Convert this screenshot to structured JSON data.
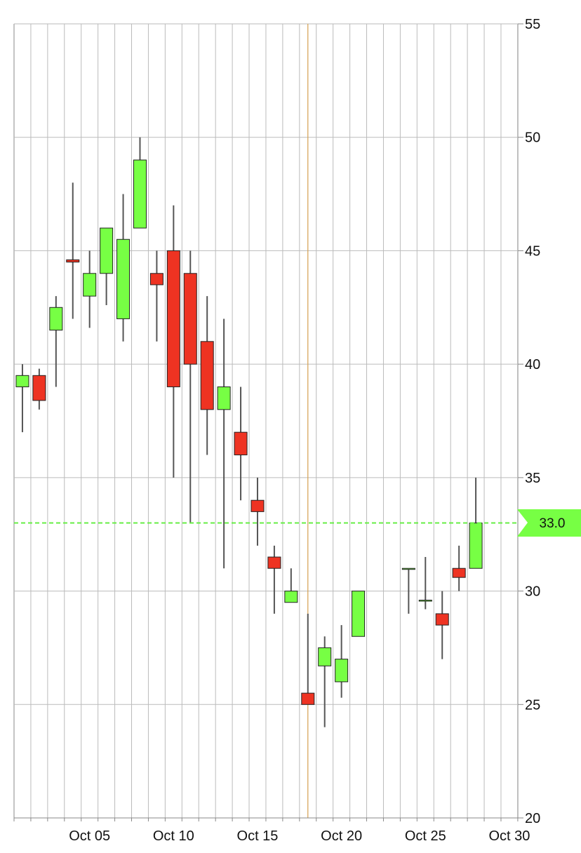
{
  "colors": {
    "up": "#77ff44",
    "down": "#ee3322",
    "grid": "#bbbbbb",
    "axis": "#888888",
    "crosshair": "#d4a050",
    "price_line": "#66ee44",
    "wick": "#555555"
  },
  "chart_data": {
    "type": "candlestick",
    "title": "",
    "xlabel": "",
    "ylabel": "",
    "ylim": [
      20,
      55
    ],
    "yticks": [
      20,
      25,
      30,
      35,
      40,
      45,
      50,
      55
    ],
    "grid": true,
    "y_axis_side": "right",
    "x_tick_labels": [
      {
        "day": 5,
        "label": "Oct 05"
      },
      {
        "day": 10,
        "label": "Oct 10"
      },
      {
        "day": 15,
        "label": "Oct 15"
      },
      {
        "day": 20,
        "label": "Oct 20"
      },
      {
        "day": 25,
        "label": "Oct 25"
      },
      {
        "day": 30,
        "label": "Oct 30"
      }
    ],
    "crosshair_day": 18,
    "current_price": 33.0,
    "current_price_label": "33.0",
    "candles": [
      {
        "day": 1,
        "open": 39.0,
        "high": 40.0,
        "low": 37.0,
        "close": 39.5
      },
      {
        "day": 2,
        "open": 39.5,
        "high": 39.8,
        "low": 38.0,
        "close": 38.4
      },
      {
        "day": 3,
        "open": 41.5,
        "high": 43.0,
        "low": 39.0,
        "close": 42.5
      },
      {
        "day": 4,
        "open": 44.6,
        "high": 48.0,
        "low": 42.0,
        "close": 44.5
      },
      {
        "day": 5,
        "open": 43.0,
        "high": 45.0,
        "low": 41.6,
        "close": 44.0
      },
      {
        "day": 6,
        "open": 44.0,
        "high": 46.0,
        "low": 42.6,
        "close": 46.0
      },
      {
        "day": 7,
        "open": 42.0,
        "high": 47.5,
        "low": 41.0,
        "close": 45.5
      },
      {
        "day": 8,
        "open": 46.0,
        "high": 50.0,
        "low": 46.0,
        "close": 49.0
      },
      {
        "day": 9,
        "open": 44.0,
        "high": 45.0,
        "low": 41.0,
        "close": 43.5
      },
      {
        "day": 10,
        "open": 45.0,
        "high": 47.0,
        "low": 35.0,
        "close": 39.0
      },
      {
        "day": 11,
        "open": 44.0,
        "high": 45.0,
        "low": 33.0,
        "close": 40.0
      },
      {
        "day": 12,
        "open": 41.0,
        "high": 43.0,
        "low": 36.0,
        "close": 38.0
      },
      {
        "day": 13,
        "open": 38.0,
        "high": 42.0,
        "low": 31.0,
        "close": 39.0
      },
      {
        "day": 14,
        "open": 37.0,
        "high": 39.0,
        "low": 34.0,
        "close": 36.0
      },
      {
        "day": 15,
        "open": 34.0,
        "high": 35.0,
        "low": 32.0,
        "close": 33.5
      },
      {
        "day": 16,
        "open": 31.5,
        "high": 32.0,
        "low": 29.0,
        "close": 31.0
      },
      {
        "day": 17,
        "open": 29.5,
        "high": 31.0,
        "low": 29.5,
        "close": 30.0
      },
      {
        "day": 18,
        "open": 25.5,
        "high": 29.0,
        "low": 25.0,
        "close": 25.0
      },
      {
        "day": 19,
        "open": 26.7,
        "high": 28.0,
        "low": 24.0,
        "close": 27.5
      },
      {
        "day": 20,
        "open": 26.0,
        "high": 28.5,
        "low": 25.3,
        "close": 27.0
      },
      {
        "day": 21,
        "open": 28.0,
        "high": 30.0,
        "low": 28.0,
        "close": 30.0
      },
      {
        "day": 24,
        "open": 31.0,
        "high": 31.0,
        "low": 29.0,
        "close": 31.0
      },
      {
        "day": 25,
        "open": 29.6,
        "high": 31.5,
        "low": 29.2,
        "close": 29.6
      },
      {
        "day": 26,
        "open": 29.0,
        "high": 30.0,
        "low": 27.0,
        "close": 28.5
      },
      {
        "day": 27,
        "open": 31.0,
        "high": 32.0,
        "low": 30.0,
        "close": 30.6
      },
      {
        "day": 28,
        "open": 31.0,
        "high": 35.0,
        "low": 31.0,
        "close": 33.0
      }
    ]
  }
}
